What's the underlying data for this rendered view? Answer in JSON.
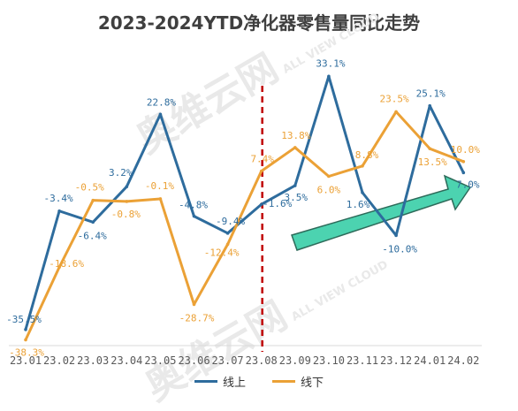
{
  "chart_data": {
    "type": "line",
    "title": "2023-2024YTD净化器零售量同比走势",
    "categories": [
      "23.01",
      "23.02",
      "23.03",
      "23.04",
      "23.05",
      "23.06",
      "23.07",
      "23.08",
      "23.09",
      "23.10",
      "23.11",
      "23.12",
      "24.01",
      "24.02"
    ],
    "series": [
      {
        "name": "线上",
        "color": "#2e6c9d",
        "values": [
          -35.5,
          -3.4,
          -6.4,
          3.2,
          22.8,
          -4.8,
          -9.4,
          -1.6,
          3.5,
          33.1,
          1.6,
          -10.0,
          25.1,
          7.0
        ],
        "labels": [
          "-35.5%",
          "-3.4%",
          "-6.4%",
          "3.2%",
          "22.8%",
          "-4.8%",
          "-9.4%",
          "-1.6%",
          "3.5%",
          "33.1%",
          "1.6%",
          "-10.0%",
          "25.1%",
          "7.0%"
        ]
      },
      {
        "name": "线下",
        "color": "#eba136",
        "values": [
          -38.3,
          -18.6,
          -0.5,
          -0.8,
          -0.1,
          -28.7,
          -12.4,
          7.4,
          13.8,
          6.0,
          8.8,
          23.5,
          13.5,
          10.0
        ],
        "labels": [
          "-38.3%",
          "-18.6%",
          "-0.5%",
          "-0.8%",
          "-0.1%",
          "-28.7%",
          "-12.4%",
          "7.4%",
          "13.8%",
          "6.0%",
          "8.8%",
          "23.5%",
          "13.5%",
          "10.0%"
        ]
      }
    ],
    "divider_after": "23.08",
    "divider_color": "#c00000",
    "trend_arrow_color": "#4cd3b0",
    "ylim": [
      -45,
      40
    ],
    "grid": false,
    "legend_position": "bottom"
  },
  "watermark": {
    "text_main": "奥维云网",
    "text_sub": "ALL VIEW CLOUD"
  }
}
